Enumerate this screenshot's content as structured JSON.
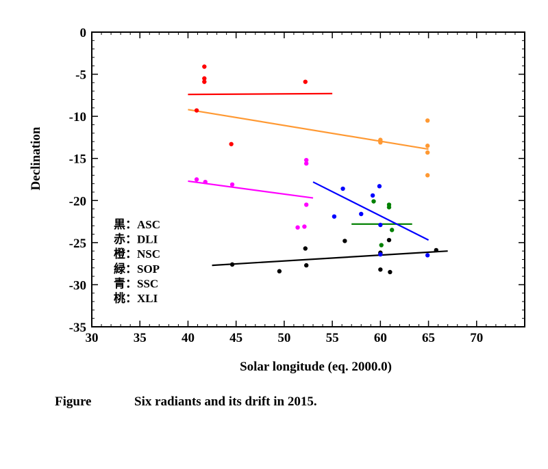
{
  "caption": {
    "label": "Figure",
    "text": "Six  radiants and its drift in 2015."
  },
  "chart_data": {
    "type": "scatter",
    "title": "",
    "xlabel": "Solar longitude (eq. 2000.0)",
    "ylabel": "Declination",
    "xlim": [
      30,
      75
    ],
    "ylim": [
      -35,
      0
    ],
    "xticks": [
      30,
      35,
      40,
      45,
      50,
      55,
      60,
      65,
      70
    ],
    "yticks": [
      0,
      -5,
      -10,
      -15,
      -20,
      -25,
      -30,
      -35
    ],
    "grid": false,
    "legend": {
      "position": "bottom-left",
      "entries": [
        {
          "jp": "黒",
          "sep": "：",
          "code": "ASC",
          "color": "#000000"
        },
        {
          "jp": "赤",
          "sep": "：",
          "code": "DLI",
          "color": "#ff0000"
        },
        {
          "jp": "橙",
          "sep": "：",
          "code": "NSC",
          "color": "#ff9933"
        },
        {
          "jp": "緑",
          "sep": "：",
          "code": "SOP",
          "color": "#008000"
        },
        {
          "jp": "青",
          "sep": "：",
          "code": "SSC",
          "color": "#0000ff"
        },
        {
          "jp": "桃",
          "sep": "：",
          "code": "XLI",
          "color": "#ff00ff"
        }
      ]
    },
    "series": [
      {
        "name": "ASC",
        "color": "#000000",
        "points": [
          [
            44.6,
            -27.6
          ],
          [
            49.5,
            -28.4
          ],
          [
            52.2,
            -25.7
          ],
          [
            52.3,
            -27.7
          ],
          [
            56.3,
            -24.8
          ],
          [
            60.0,
            -26.2
          ],
          [
            60.0,
            -28.2
          ],
          [
            60.0,
            -26.3
          ],
          [
            60.9,
            -24.7
          ],
          [
            61.0,
            -28.5
          ],
          [
            65.8,
            -25.9
          ]
        ],
        "fit": [
          [
            42.5,
            -27.7
          ],
          [
            67.0,
            -26.0
          ]
        ]
      },
      {
        "name": "DLI",
        "color": "#ff0000",
        "points": [
          [
            40.9,
            -9.3
          ],
          [
            41.7,
            -4.1
          ],
          [
            41.7,
            -5.5
          ],
          [
            41.7,
            -5.9
          ],
          [
            44.5,
            -13.3
          ],
          [
            52.2,
            -5.9
          ]
        ],
        "fit": [
          [
            40.0,
            -7.4
          ],
          [
            55.0,
            -7.3
          ]
        ]
      },
      {
        "name": "NSC",
        "color": "#ff9933",
        "points": [
          [
            60.0,
            -12.8
          ],
          [
            60.0,
            -13.0
          ],
          [
            60.0,
            -13.1
          ],
          [
            64.9,
            -10.5
          ],
          [
            64.9,
            -13.5
          ],
          [
            64.9,
            -14.3
          ],
          [
            64.9,
            -17.0
          ]
        ],
        "fit": [
          [
            40.0,
            -9.2
          ],
          [
            65.0,
            -13.9
          ]
        ]
      },
      {
        "name": "SOP",
        "color": "#008000",
        "points": [
          [
            59.3,
            -20.1
          ],
          [
            60.9,
            -20.5
          ],
          [
            60.9,
            -20.8
          ],
          [
            60.1,
            -25.3
          ],
          [
            61.2,
            -23.5
          ]
        ],
        "fit": [
          [
            57.0,
            -22.8
          ],
          [
            63.3,
            -22.8
          ]
        ]
      },
      {
        "name": "SSC",
        "color": "#0000ff",
        "points": [
          [
            56.1,
            -18.6
          ],
          [
            55.2,
            -21.9
          ],
          [
            58.0,
            -21.6
          ],
          [
            59.2,
            -19.4
          ],
          [
            59.9,
            -18.3
          ],
          [
            60.0,
            -22.9
          ],
          [
            60.0,
            -26.4
          ],
          [
            64.9,
            -26.5
          ]
        ],
        "fit": [
          [
            53.0,
            -17.8
          ],
          [
            65.0,
            -24.7
          ]
        ]
      },
      {
        "name": "XLI",
        "color": "#ff00ff",
        "points": [
          [
            40.9,
            -17.5
          ],
          [
            41.8,
            -17.8
          ],
          [
            44.6,
            -18.1
          ],
          [
            51.4,
            -23.2
          ],
          [
            52.1,
            -23.1
          ],
          [
            52.3,
            -15.2
          ],
          [
            52.3,
            -15.6
          ],
          [
            52.3,
            -20.5
          ]
        ],
        "fit": [
          [
            40.0,
            -17.7
          ],
          [
            53.0,
            -19.7
          ]
        ]
      }
    ]
  }
}
